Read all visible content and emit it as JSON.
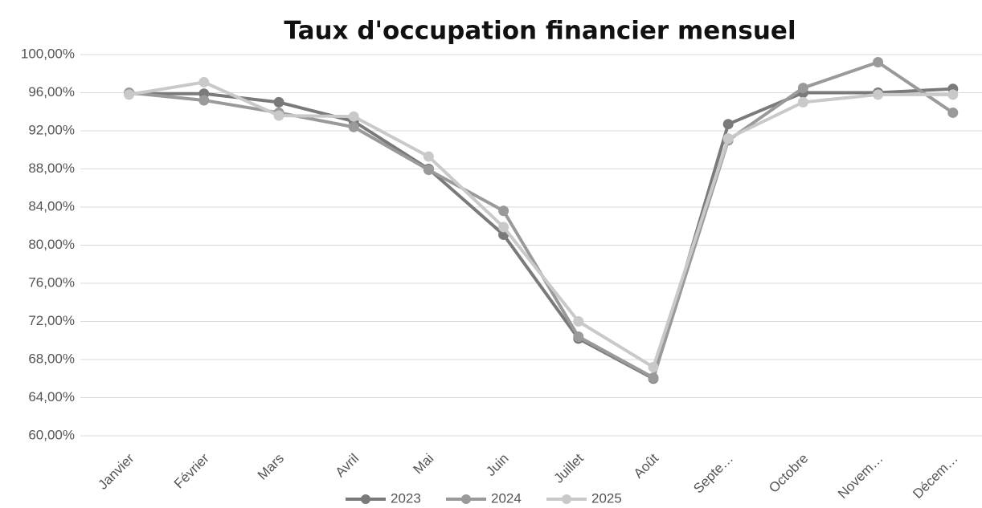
{
  "chart_data": {
    "type": "line",
    "title": "Taux d'occupation financier mensuel",
    "categories": [
      "Janvier",
      "Février",
      "Mars",
      "Avril",
      "Mai",
      "Juin",
      "Juillet",
      "Août",
      "Septe…",
      "Octobre",
      "Novem…",
      "Décem…"
    ],
    "series": [
      {
        "name": "2023",
        "color": "#7a7a7a",
        "values": [
          95.9,
          95.9,
          95.0,
          93.0,
          88.0,
          81.1,
          70.2,
          66.0,
          92.7,
          96.0,
          96.0,
          96.4
        ]
      },
      {
        "name": "2024",
        "color": "#9a9a9a",
        "values": [
          96.0,
          95.2,
          93.9,
          92.4,
          87.9,
          83.6,
          70.4,
          66.1,
          91.0,
          96.5,
          99.2,
          93.9
        ]
      },
      {
        "name": "2025",
        "color": "#c9c9c9",
        "values": [
          95.8,
          97.1,
          93.6,
          93.5,
          89.3,
          81.9,
          72.0,
          67.2,
          91.2,
          95.0,
          95.8,
          95.8
        ]
      }
    ],
    "ylim": [
      60,
      100
    ],
    "yticks": [
      {
        "value": 60,
        "label": "60,00%"
      },
      {
        "value": 64,
        "label": "64,00%"
      },
      {
        "value": 68,
        "label": "68,00%"
      },
      {
        "value": 72,
        "label": "72,00%"
      },
      {
        "value": 76,
        "label": "76,00%"
      },
      {
        "value": 80,
        "label": "80,00%"
      },
      {
        "value": 84,
        "label": "84,00%"
      },
      {
        "value": 88,
        "label": "88,00%"
      },
      {
        "value": 92,
        "label": "92,00%"
      },
      {
        "value": 96,
        "label": "96,00%"
      },
      {
        "value": 100,
        "label": "100,00%"
      }
    ],
    "grid": true,
    "legend": "bottom"
  }
}
